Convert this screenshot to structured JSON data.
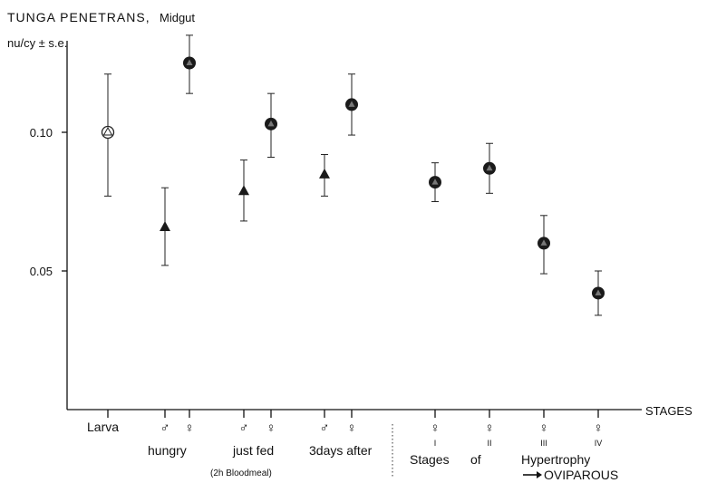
{
  "chart_data": {
    "type": "scatter",
    "title": "TUNGA PENETRANS,",
    "subtitle": "Midgut",
    "ylabel": "nu/cy ± s.e.",
    "xlabel": "STAGES",
    "ylim": [
      0.0,
      0.14
    ],
    "yticks": [
      {
        "value": 0.05,
        "label": "0.05"
      },
      {
        "value": 0.1,
        "label": "0.10"
      }
    ],
    "groups": [
      {
        "label": "Larva",
        "sub": ""
      },
      {
        "label": "hungry",
        "sub": ""
      },
      {
        "label": "just fed",
        "sub": "(2h Bloodmeal)"
      },
      {
        "label": "3days after",
        "sub": ""
      },
      {
        "label": "Stages",
        "sub": ""
      },
      {
        "label": "of",
        "sub": ""
      },
      {
        "label": "Hypertrophy",
        "sub": "OVIPAROUS"
      }
    ],
    "sex_symbols": {
      "male": "♂",
      "female": "♀"
    },
    "roman": [
      "I",
      "II",
      "III",
      "IV"
    ],
    "points": [
      {
        "x": "Larva",
        "tick": "",
        "marker": "open-circle",
        "value": 0.1,
        "err_low": 0.077,
        "err_high": 0.121
      },
      {
        "x": "hungry",
        "tick": "♂",
        "marker": "triangle",
        "value": 0.066,
        "err_low": 0.052,
        "err_high": 0.08
      },
      {
        "x": "hungry",
        "tick": "♀",
        "marker": "filled-circle",
        "value": 0.125,
        "err_low": 0.114,
        "err_high": 0.135
      },
      {
        "x": "just fed",
        "tick": "♂",
        "marker": "triangle",
        "value": 0.079,
        "err_low": 0.068,
        "err_high": 0.09
      },
      {
        "x": "just fed",
        "tick": "♀",
        "marker": "filled-circle",
        "value": 0.103,
        "err_low": 0.091,
        "err_high": 0.114
      },
      {
        "x": "3days after",
        "tick": "♂",
        "marker": "triangle",
        "value": 0.085,
        "err_low": 0.077,
        "err_high": 0.092
      },
      {
        "x": "3days after",
        "tick": "♀",
        "marker": "filled-circle",
        "value": 0.11,
        "err_low": 0.099,
        "err_high": 0.121
      },
      {
        "x": "Stage I",
        "tick": "♀",
        "marker": "filled-circle",
        "value": 0.082,
        "err_low": 0.075,
        "err_high": 0.089
      },
      {
        "x": "Stage II",
        "tick": "♀",
        "marker": "filled-circle",
        "value": 0.087,
        "err_low": 0.078,
        "err_high": 0.096
      },
      {
        "x": "Stage III",
        "tick": "♀",
        "marker": "filled-circle",
        "value": 0.06,
        "err_low": 0.049,
        "err_high": 0.07
      },
      {
        "x": "Stage IV",
        "tick": "♀",
        "marker": "filled-circle",
        "value": 0.042,
        "err_low": 0.034,
        "err_high": 0.05
      }
    ],
    "grid": false,
    "legend": "none"
  }
}
